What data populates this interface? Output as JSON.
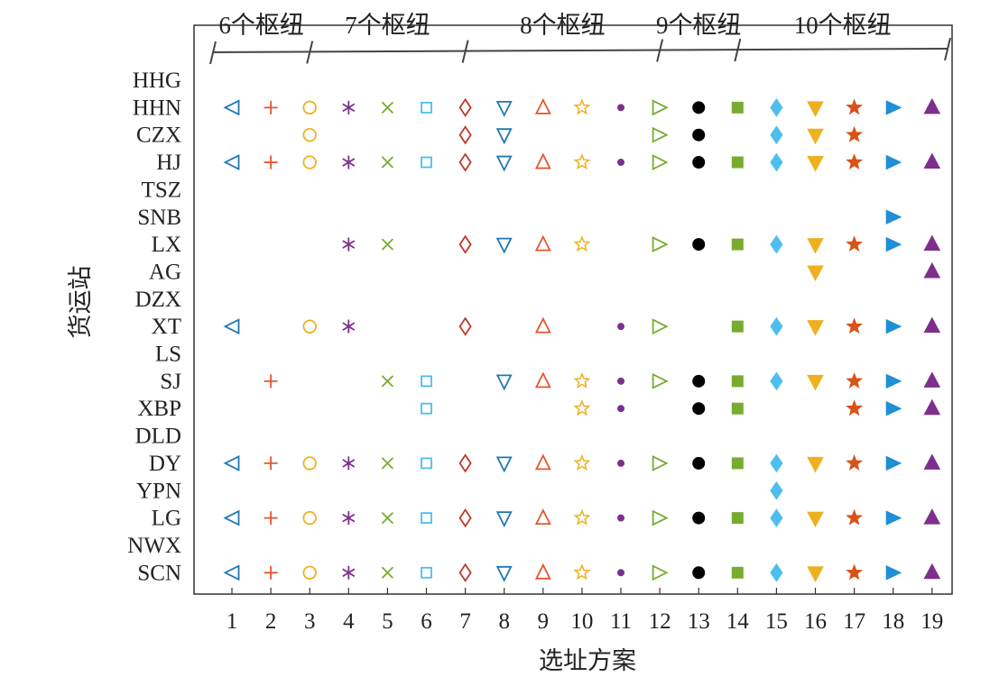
{
  "chart_data": {
    "type": "scatter",
    "xlabel": "选址方案",
    "ylabel": "货运站",
    "x": [
      1,
      2,
      3,
      4,
      5,
      6,
      7,
      8,
      9,
      10,
      11,
      12,
      13,
      14,
      15,
      16,
      17,
      18,
      19
    ],
    "categories": [
      "HHG",
      "HHN",
      "CZX",
      "HJ",
      "TSZ",
      "SNB",
      "LX",
      "AG",
      "DZX",
      "XT",
      "LS",
      "SJ",
      "XBP",
      "DLD",
      "DY",
      "YPN",
      "LG",
      "NWX",
      "SCN"
    ],
    "groups": [
      {
        "label": "6个枢纽",
        "from": 1,
        "to": 3
      },
      {
        "label": "7个枢纽",
        "from": 3,
        "to": 7
      },
      {
        "label": "8个枢纽",
        "from": 7,
        "to": 12
      },
      {
        "label": "9个枢纽",
        "from": 12,
        "to": 14
      },
      {
        "label": "10个枢纽",
        "from": 14,
        "to": 19
      }
    ],
    "series": [
      {
        "x": 1,
        "marker": "triangle-left-open",
        "color": "#1f77b4",
        "stations": [
          "HHN",
          "HJ",
          "XT",
          "DY",
          "LG",
          "SCN"
        ]
      },
      {
        "x": 2,
        "marker": "plus",
        "color": "#e4572e",
        "stations": [
          "HHN",
          "HJ",
          "SJ",
          "DY",
          "LG",
          "SCN"
        ]
      },
      {
        "x": 3,
        "marker": "circle-open",
        "color": "#edb120",
        "stations": [
          "HHN",
          "CZX",
          "HJ",
          "XT",
          "DY",
          "LG",
          "SCN"
        ]
      },
      {
        "x": 4,
        "marker": "asterisk",
        "color": "#7e2f8e",
        "stations": [
          "HHN",
          "HJ",
          "LX",
          "XT",
          "DY",
          "LG",
          "SCN"
        ]
      },
      {
        "x": 5,
        "marker": "x",
        "color": "#77ac30",
        "stations": [
          "HHN",
          "HJ",
          "LX",
          "SJ",
          "DY",
          "LG",
          "SCN"
        ]
      },
      {
        "x": 6,
        "marker": "square-open",
        "color": "#4dbeee",
        "stations": [
          "HHN",
          "HJ",
          "SJ",
          "XBP",
          "DY",
          "LG",
          "SCN"
        ]
      },
      {
        "x": 7,
        "marker": "diamond-open",
        "color": "#c0392b",
        "stations": [
          "HHN",
          "CZX",
          "HJ",
          "LX",
          "XT",
          "DY",
          "LG",
          "SCN"
        ]
      },
      {
        "x": 8,
        "marker": "triangle-down-open",
        "color": "#1f77b4",
        "stations": [
          "HHN",
          "CZX",
          "HJ",
          "LX",
          "SJ",
          "DY",
          "LG",
          "SCN"
        ]
      },
      {
        "x": 9,
        "marker": "triangle-up-open",
        "color": "#e4572e",
        "stations": [
          "HHN",
          "HJ",
          "LX",
          "XT",
          "SJ",
          "DY",
          "LG",
          "SCN"
        ]
      },
      {
        "x": 10,
        "marker": "star-open",
        "color": "#edb120",
        "stations": [
          "HHN",
          "HJ",
          "LX",
          "SJ",
          "XBP",
          "DY",
          "LG",
          "SCN"
        ]
      },
      {
        "x": 11,
        "marker": "dot",
        "color": "#7e2f8e",
        "stations": [
          "HHN",
          "HJ",
          "XT",
          "SJ",
          "XBP",
          "DY",
          "LG",
          "SCN"
        ]
      },
      {
        "x": 12,
        "marker": "triangle-right-open",
        "color": "#77ac30",
        "stations": [
          "HHN",
          "CZX",
          "HJ",
          "LX",
          "XT",
          "SJ",
          "DY",
          "LG",
          "SCN"
        ]
      },
      {
        "x": 13,
        "marker": "circle-filled",
        "color": "#000000",
        "stations": [
          "HHN",
          "CZX",
          "HJ",
          "LX",
          "SJ",
          "XBP",
          "DY",
          "LG",
          "SCN"
        ]
      },
      {
        "x": 14,
        "marker": "square-filled",
        "color": "#77ac30",
        "stations": [
          "HHN",
          "HJ",
          "LX",
          "XT",
          "SJ",
          "XBP",
          "DY",
          "LG",
          "SCN"
        ]
      },
      {
        "x": 15,
        "marker": "diamond-filled",
        "color": "#4dbeee",
        "stations": [
          "HHN",
          "CZX",
          "HJ",
          "LX",
          "XT",
          "SJ",
          "DY",
          "YPN",
          "LG",
          "SCN"
        ]
      },
      {
        "x": 16,
        "marker": "triangle-down-filled",
        "color": "#edb120",
        "stations": [
          "HHN",
          "CZX",
          "HJ",
          "LX",
          "AG",
          "XT",
          "SJ",
          "DY",
          "LG",
          "SCN"
        ]
      },
      {
        "x": 17,
        "marker": "star-filled",
        "color": "#d95319",
        "stations": [
          "HHN",
          "CZX",
          "HJ",
          "LX",
          "XT",
          "SJ",
          "XBP",
          "DY",
          "LG",
          "SCN"
        ]
      },
      {
        "x": 18,
        "marker": "triangle-right-filled",
        "color": "#1f8fd6",
        "stations": [
          "HHN",
          "HJ",
          "SNB",
          "LX",
          "XT",
          "SJ",
          "XBP",
          "DY",
          "LG",
          "SCN"
        ]
      },
      {
        "x": 19,
        "marker": "triangle-up-filled",
        "color": "#7e2f8e",
        "stations": [
          "HHN",
          "HJ",
          "LX",
          "AG",
          "XT",
          "SJ",
          "XBP",
          "DY",
          "LG",
          "SCN"
        ]
      }
    ]
  }
}
